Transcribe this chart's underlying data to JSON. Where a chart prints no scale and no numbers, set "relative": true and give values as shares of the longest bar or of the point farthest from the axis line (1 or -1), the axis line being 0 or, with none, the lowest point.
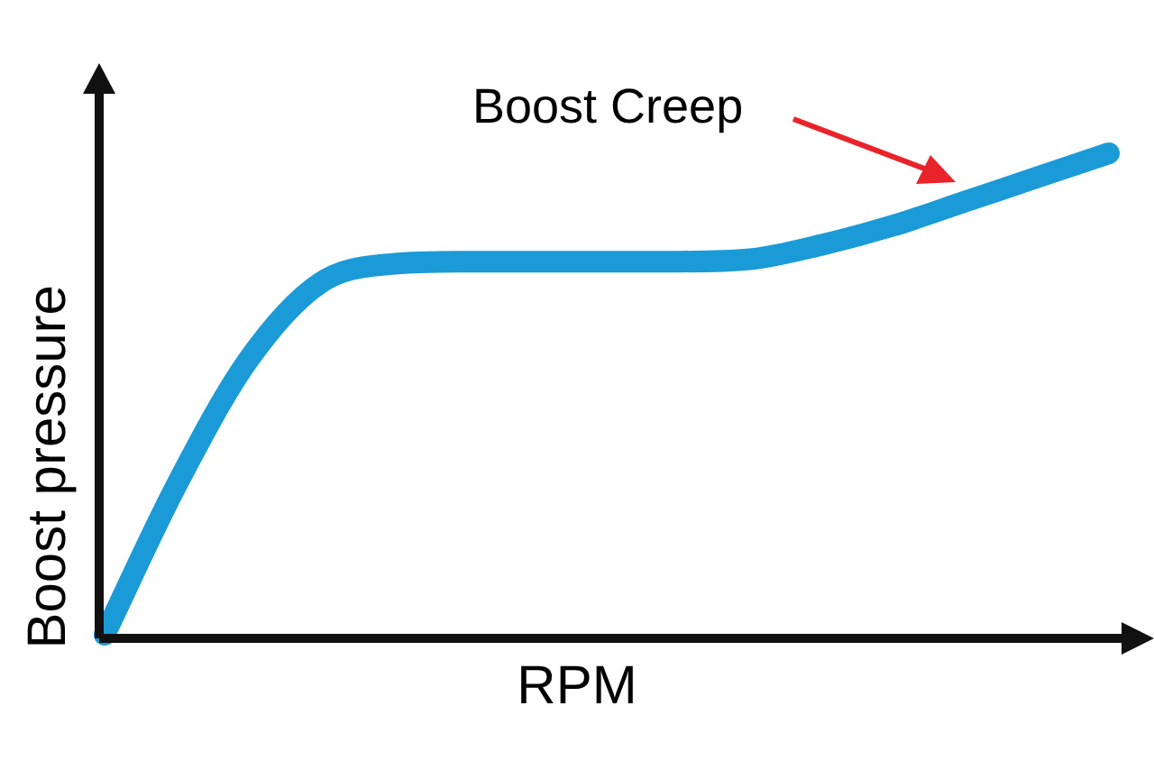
{
  "chart_data": {
    "type": "line",
    "relative": true,
    "xlabel": "RPM",
    "ylabel": "Boost pressure",
    "annotations": [
      "Boost Creep"
    ],
    "categories": [
      null,
      null,
      null,
      null,
      null,
      null,
      null,
      null,
      null,
      null,
      null,
      null,
      null,
      null,
      null
    ],
    "series": [
      {
        "color": "#1a9ad6",
        "values": [
          0,
          0.31,
          0.57,
          0.73,
          0.77,
          0.775,
          0.775,
          0.775,
          0.775,
          0.78,
          0.81,
          0.85,
          0.9,
          0.95,
          1
        ]
      }
    ],
    "marker": "none",
    "legend": false
  }
}
